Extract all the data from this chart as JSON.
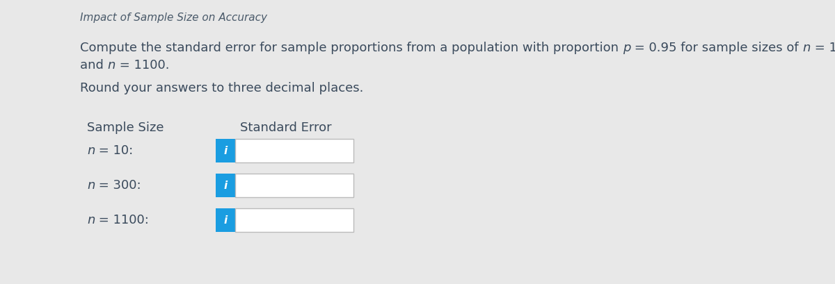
{
  "title": "Impact of Sample Size on Accuracy",
  "bg_color": "#e8e8e8",
  "content_bg": "#ffffff",
  "text_color": "#3a4a5c",
  "title_color": "#4a5a6a",
  "blue_color": "#1a9de1",
  "box_border_color": "#bbbbbb",
  "round_text": "Round your answers to three decimal places.",
  "col1_header": "Sample Size",
  "col2_header": "Standard Error",
  "figwidth": 12.0,
  "figheight": 4.1,
  "dpi": 100
}
